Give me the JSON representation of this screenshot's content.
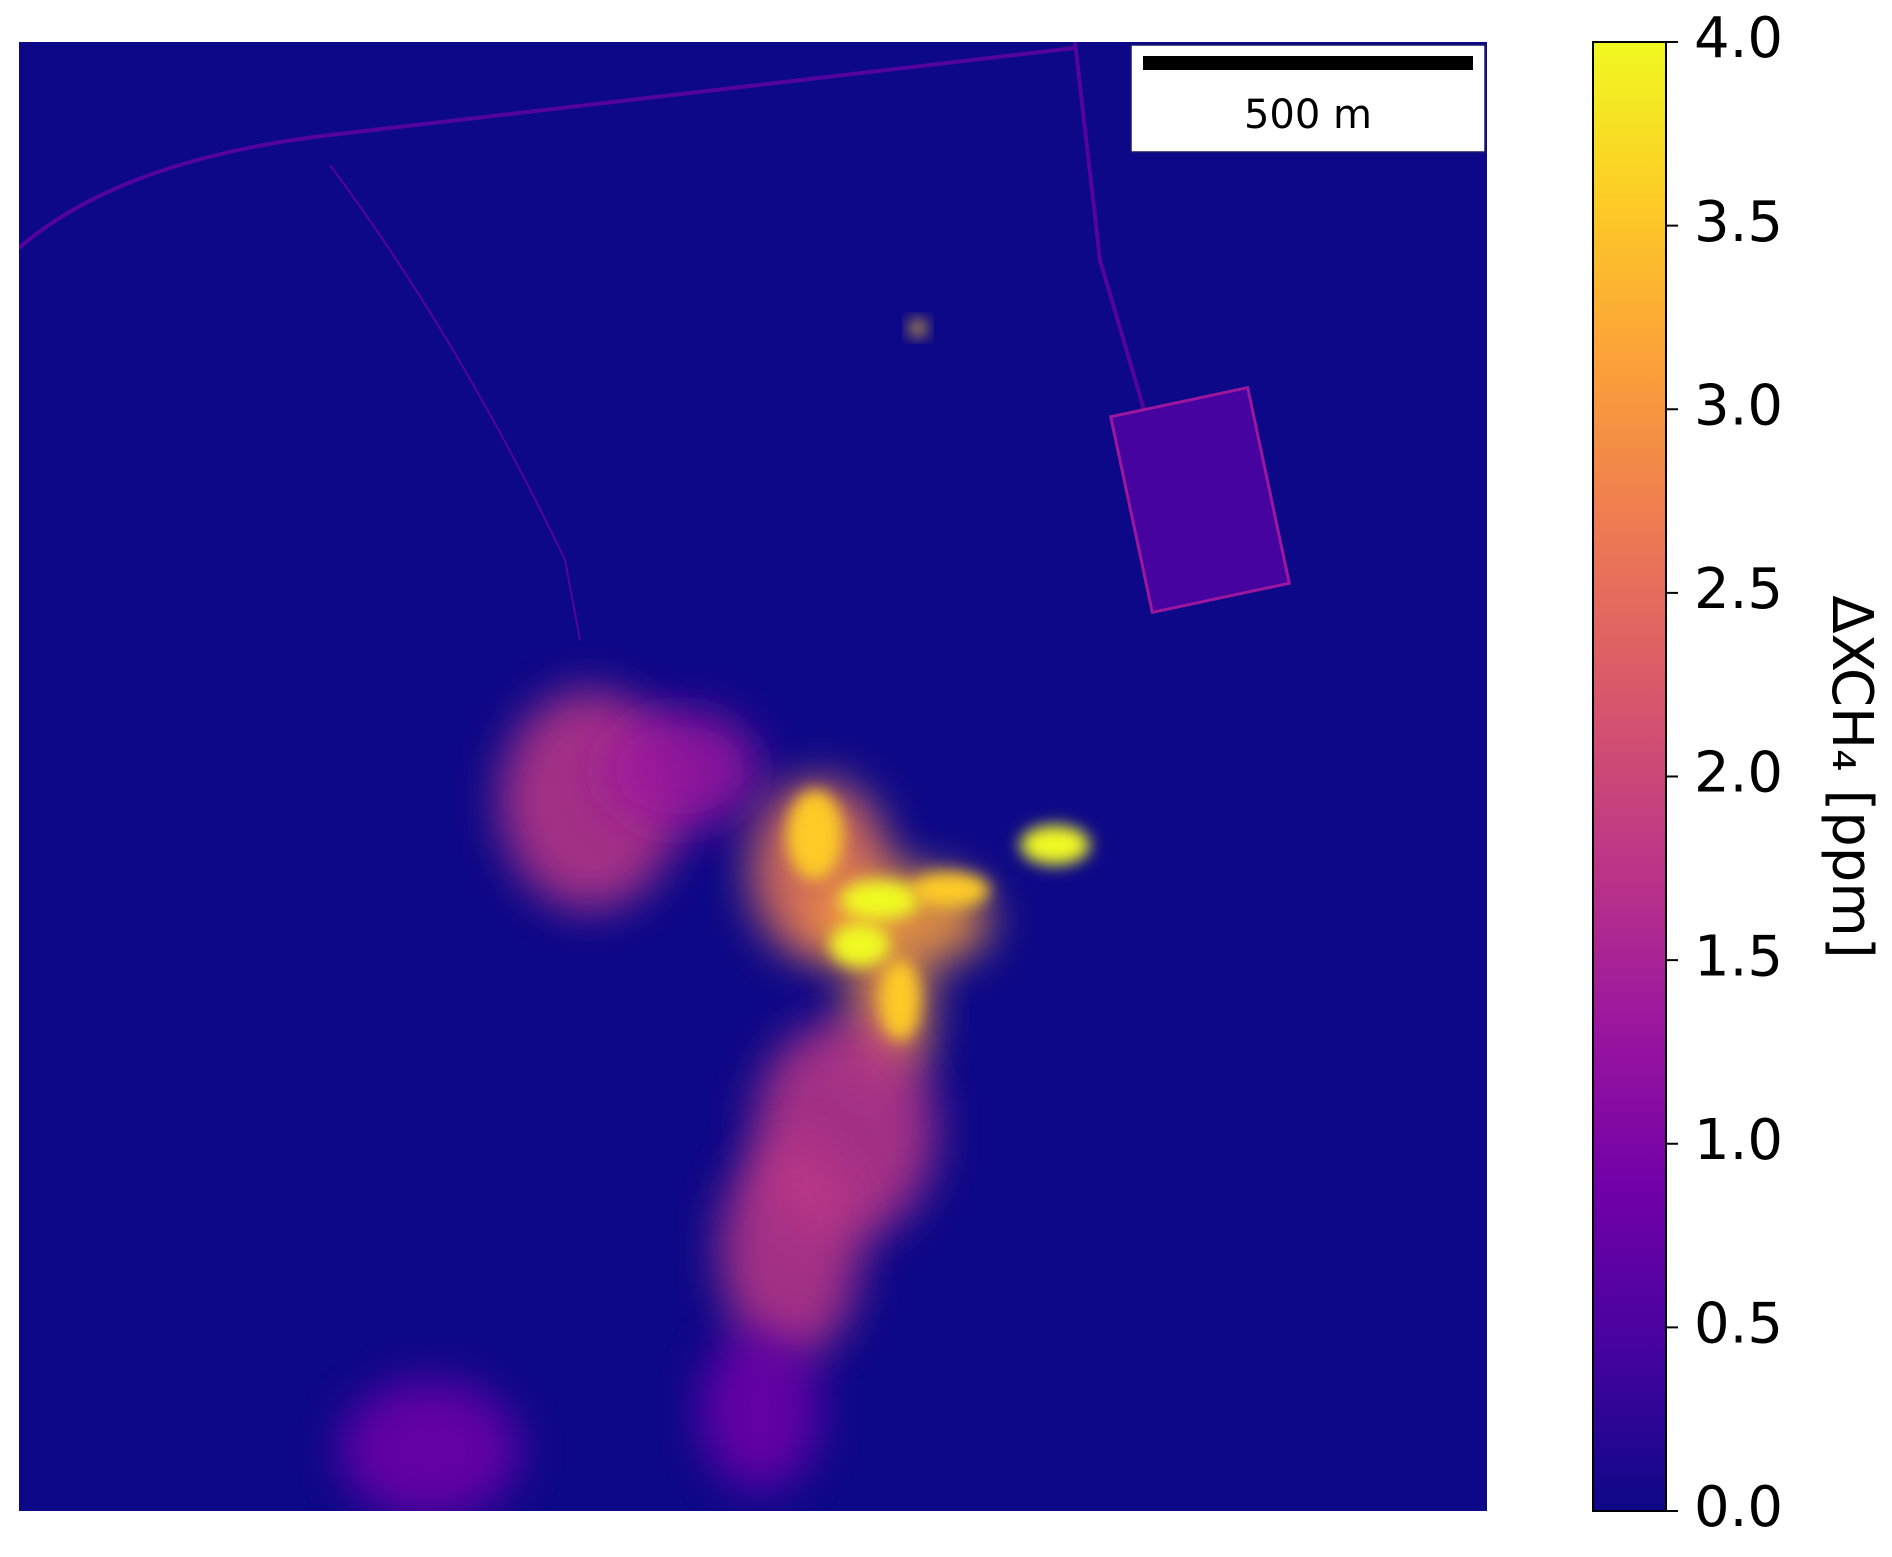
{
  "chart_data": {
    "type": "heatmap",
    "colorbar_label": "ΔXCH₄ [ppm]",
    "scale_bar_label": "500 m",
    "clim": [
      0,
      4
    ],
    "cticks": [
      {
        "value": 0,
        "label": "0.0"
      },
      {
        "value": 0.5,
        "label": "0.5"
      },
      {
        "value": 1,
        "label": "1.0"
      },
      {
        "value": 1.5,
        "label": "1.5"
      },
      {
        "value": 2,
        "label": "2.0"
      },
      {
        "value": 2.5,
        "label": "2.5"
      },
      {
        "value": 3,
        "label": "3.0"
      },
      {
        "value": 3.5,
        "label": "3.5"
      },
      {
        "value": 4,
        "label": "4.0"
      }
    ],
    "colormap": [
      "#0d0887",
      "#46039f",
      "#7201a8",
      "#9c179e",
      "#bd3786",
      "#d8576b",
      "#ed7953",
      "#fb9f3a",
      "#fdca26",
      "#f0f921"
    ]
  }
}
